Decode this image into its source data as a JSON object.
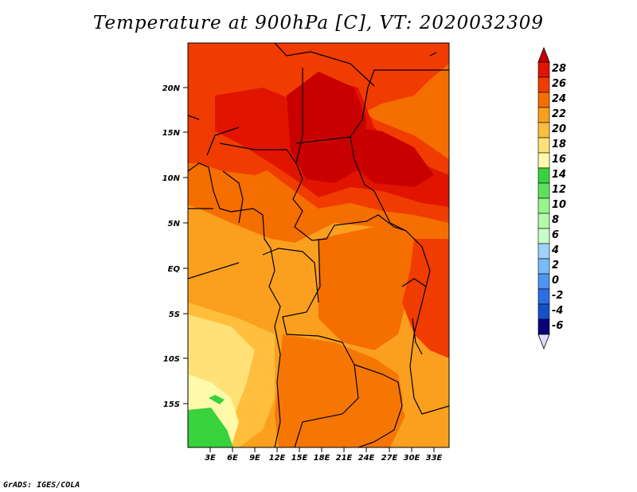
{
  "title": "Temperature at 900hPa [C], VT: 2020032309",
  "credit": "GrADS: IGES/COLA",
  "map": {
    "lat_labels": [
      "20N",
      "15N",
      "10N",
      "5N",
      "EQ",
      "5S",
      "10S",
      "15S"
    ],
    "lon_labels": [
      "3E",
      "6E",
      "9E",
      "12E",
      "15E",
      "18E",
      "21E",
      "24E",
      "27E",
      "30E",
      "33E"
    ]
  },
  "colorbar": {
    "labels": [
      "28",
      "26",
      "24",
      "22",
      "20",
      "18",
      "16",
      "14",
      "12",
      "10",
      "8",
      "6",
      "4",
      "2",
      "0",
      "-2",
      "-4",
      "-6"
    ],
    "colors": {
      "above_28": "#c80000",
      "26_28": "#e11400",
      "24_26": "#f03c00",
      "22_24": "#f56e00",
      "20_22": "#faa01e",
      "18_20": "#ffbe3c",
      "16_18": "#ffe178",
      "14_16": "#fffaaa",
      "12_14": "#37d23c",
      "10_12": "#5fe15f",
      "8_10": "#96f58c",
      "6_8": "#b4faaa",
      "4_6": "#c8ffc8",
      "2_4": "#a0d2fa",
      "0_2": "#78b9fa",
      "m2_0": "#5096f0",
      "m4_m2": "#2d6ee6",
      "m6_m4": "#1450c8",
      "below_m6": "#0a0078",
      "below_m6_arrow": "#dcdcff"
    }
  }
}
